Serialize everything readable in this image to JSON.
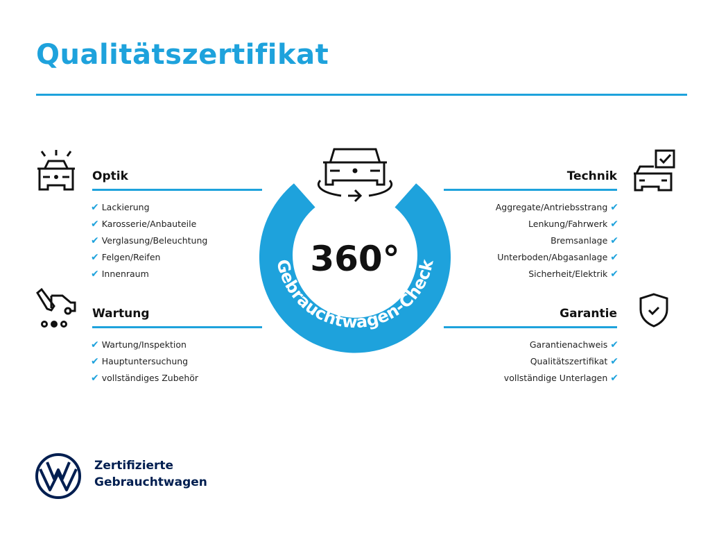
{
  "title": "Qualitätszertifikat",
  "center": {
    "degrees": "360°",
    "arc_text": "Gebrauchtwagen-Check"
  },
  "sections": {
    "optik": {
      "heading": "Optik",
      "items": [
        "Lackierung",
        "Karosserie/Anbauteile",
        "Verglasung/Beleuchtung",
        "Felgen/Reifen",
        "Innenraum"
      ]
    },
    "wartung": {
      "heading": "Wartung",
      "items": [
        "Wartung/Inspektion",
        "Hauptuntersuchung",
        "vollständiges Zubehör"
      ]
    },
    "technik": {
      "heading": "Technik",
      "items": [
        "Aggregate/Antriebsstrang",
        "Lenkung/Fahrwerk",
        "Bremsanlage",
        "Unterboden/Abgasanlage",
        "Sicherheit/Elektrik"
      ]
    },
    "garantie": {
      "heading": "Garantie",
      "items": [
        "Garantienachweis",
        "Qualitätszertifikat",
        "vollständige Unterlagen"
      ]
    }
  },
  "check_mark": "✔",
  "brand": {
    "line1": "Zertifizierte",
    "line2": "Gebrauchtwagen",
    "logo": "VW"
  },
  "colors": {
    "accent": "#1ea2dc",
    "navy": "#001e50"
  }
}
